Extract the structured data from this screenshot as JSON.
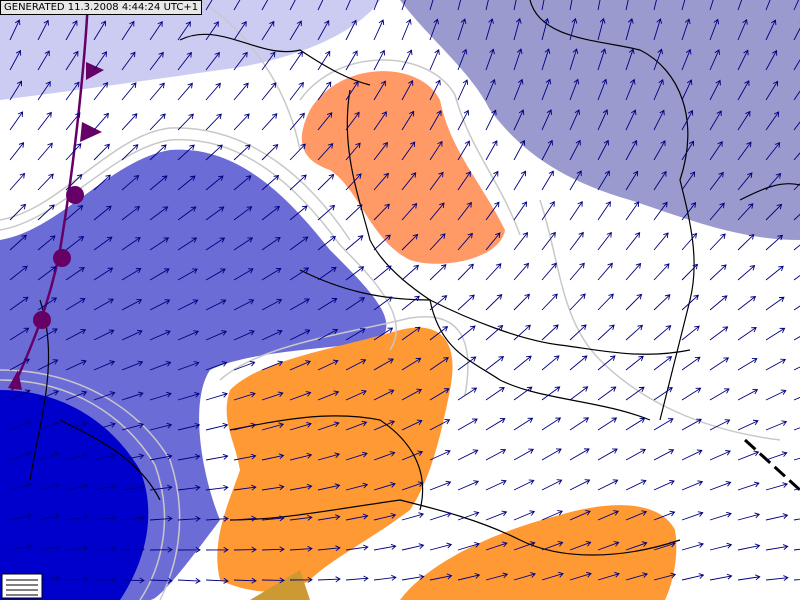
{
  "header": {
    "generated": "GENERATED 11.3.2008 4:44:24 UTC+1"
  }
}
